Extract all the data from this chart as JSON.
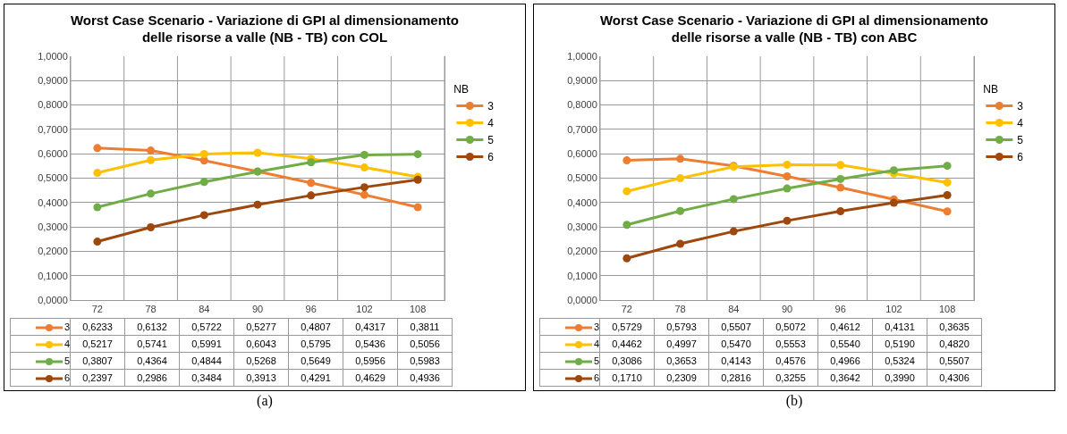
{
  "chart_data": [
    {
      "type": "line",
      "title": "Worst Case Scenario - Variazione di GPI al dimensionamento delle risorse a valle (NB - TB) con COL",
      "legend_title": "NB",
      "categories": [
        "72",
        "78",
        "84",
        "90",
        "96",
        "102",
        "108"
      ],
      "series": [
        {
          "name": "3",
          "color": "#ed7d31",
          "values": [
            0.6233,
            0.6132,
            0.5722,
            0.5277,
            0.4807,
            0.4317,
            0.3811
          ],
          "value_labels": [
            "0,6233",
            "0,6132",
            "0,5722",
            "0,5277",
            "0,4807",
            "0,4317",
            "0,3811"
          ]
        },
        {
          "name": "4",
          "color": "#ffc000",
          "values": [
            0.5217,
            0.5741,
            0.5991,
            0.6043,
            0.5795,
            0.5436,
            0.5056
          ],
          "value_labels": [
            "0,5217",
            "0,5741",
            "0,5991",
            "0,6043",
            "0,5795",
            "0,5436",
            "0,5056"
          ]
        },
        {
          "name": "5",
          "color": "#70ad47",
          "values": [
            0.3807,
            0.4364,
            0.4844,
            0.5268,
            0.5649,
            0.5956,
            0.5983
          ],
          "value_labels": [
            "0,3807",
            "0,4364",
            "0,4844",
            "0,5268",
            "0,5649",
            "0,5956",
            "0,5983"
          ]
        },
        {
          "name": "6",
          "color": "#9e480e",
          "values": [
            0.2397,
            0.2986,
            0.3484,
            0.3913,
            0.4291,
            0.4629,
            0.4936
          ],
          "value_labels": [
            "0,2397",
            "0,2986",
            "0,3484",
            "0,3913",
            "0,4291",
            "0,4629",
            "0,4936"
          ]
        }
      ],
      "ylim": [
        0,
        1
      ],
      "yticks": [
        {
          "value": 0,
          "label": "0,0000"
        },
        {
          "value": 0.1,
          "label": "0,1000"
        },
        {
          "value": 0.2,
          "label": "0,2000"
        },
        {
          "value": 0.3,
          "label": "0,3000"
        },
        {
          "value": 0.4,
          "label": "0,4000"
        },
        {
          "value": 0.5,
          "label": "0,5000"
        },
        {
          "value": 0.6,
          "label": "0,6000"
        },
        {
          "value": 0.7,
          "label": "0,7000"
        },
        {
          "value": 0.8,
          "label": "0,8000"
        },
        {
          "value": 0.9,
          "label": "0,9000"
        },
        {
          "value": 1,
          "label": "1,0000"
        }
      ],
      "grid": true,
      "legend": "right",
      "marker": "circle",
      "line_style": "solid",
      "annotations": [
        "(a)"
      ]
    },
    {
      "type": "line",
      "title": "Worst Case Scenario - Variazione di GPI al dimensionamento delle risorse a valle (NB - TB) con ABC",
      "legend_title": "NB",
      "categories": [
        "72",
        "78",
        "84",
        "90",
        "96",
        "102",
        "108"
      ],
      "series": [
        {
          "name": "3",
          "color": "#ed7d31",
          "values": [
            0.5729,
            0.5793,
            0.5507,
            0.5072,
            0.4612,
            0.4131,
            0.3635
          ],
          "value_labels": [
            "0,5729",
            "0,5793",
            "0,5507",
            "0,5072",
            "0,4612",
            "0,4131",
            "0,3635"
          ]
        },
        {
          "name": "4",
          "color": "#ffc000",
          "values": [
            0.4462,
            0.4997,
            0.547,
            0.5553,
            0.554,
            0.519,
            0.482
          ],
          "value_labels": [
            "0,4462",
            "0,4997",
            "0,5470",
            "0,5553",
            "0,5540",
            "0,5190",
            "0,4820"
          ]
        },
        {
          "name": "5",
          "color": "#70ad47",
          "values": [
            0.3086,
            0.3653,
            0.4143,
            0.4576,
            0.4966,
            0.5324,
            0.5507
          ],
          "value_labels": [
            "0,3086",
            "0,3653",
            "0,4143",
            "0,4576",
            "0,4966",
            "0,5324",
            "0,5507"
          ]
        },
        {
          "name": "6",
          "color": "#9e480e",
          "values": [
            0.171,
            0.2309,
            0.2816,
            0.3255,
            0.3642,
            0.399,
            0.4306
          ],
          "value_labels": [
            "0,1710",
            "0,2309",
            "0,2816",
            "0,3255",
            "0,3642",
            "0,3990",
            "0,4306"
          ]
        }
      ],
      "ylim": [
        0,
        1
      ],
      "yticks": [
        {
          "value": 0,
          "label": "0,0000"
        },
        {
          "value": 0.1,
          "label": "0,1000"
        },
        {
          "value": 0.2,
          "label": "0,2000"
        },
        {
          "value": 0.3,
          "label": "0,3000"
        },
        {
          "value": 0.4,
          "label": "0,4000"
        },
        {
          "value": 0.5,
          "label": "0,5000"
        },
        {
          "value": 0.6,
          "label": "0,6000"
        },
        {
          "value": 0.7,
          "label": "0,7000"
        },
        {
          "value": 0.8,
          "label": "0,8000"
        },
        {
          "value": 0.9,
          "label": "0,9000"
        },
        {
          "value": 1,
          "label": "1,0000"
        }
      ],
      "grid": true,
      "legend": "right",
      "marker": "circle",
      "line_style": "solid",
      "annotations": [
        "(b)"
      ]
    }
  ]
}
